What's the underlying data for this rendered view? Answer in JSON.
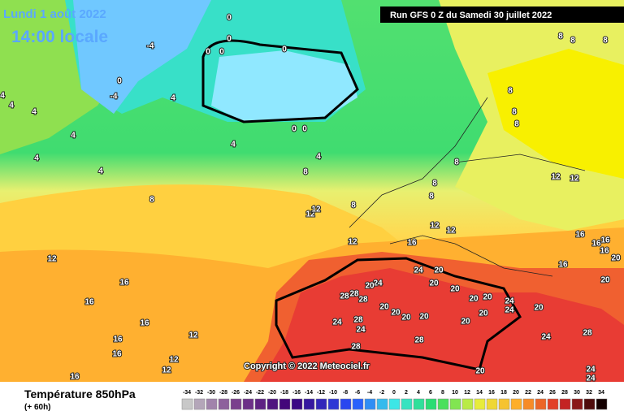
{
  "header": {
    "date": "Lundi 1 août 2022",
    "time": "14:00 locale",
    "run": "Run GFS 0 Z du Samedi 30 juillet 2022"
  },
  "copyright": "Copyright © 2022 Meteociel.fr",
  "footer": {
    "title": "Température 850hPa",
    "lead": "(+ 60h)"
  },
  "scale": {
    "ticks": [
      -34,
      -32,
      -30,
      -28,
      -26,
      -24,
      -22,
      -20,
      -18,
      -16,
      -14,
      -12,
      -10,
      -8,
      -6,
      -4,
      -2,
      0,
      2,
      4,
      6,
      8,
      10,
      12,
      14,
      16,
      18,
      20,
      22,
      24,
      26,
      28,
      30,
      32,
      34
    ]
  },
  "map_labels": [
    "0",
    "0",
    "-4",
    "0",
    "0",
    "0",
    "0",
    "-4",
    "4",
    "4",
    "4",
    "4",
    "4",
    "4",
    "4",
    "4",
    "4",
    "0",
    "0",
    "8",
    "8",
    "8",
    "8",
    "8",
    "8",
    "8",
    "8",
    "8",
    "8",
    "8",
    "8",
    "12",
    "12",
    "12",
    "12",
    "12",
    "12",
    "12",
    "12",
    "16",
    "16",
    "16",
    "16",
    "16",
    "16",
    "16",
    "16",
    "16",
    "16",
    "16",
    "16",
    "12",
    "12",
    "12",
    "24",
    "20",
    "24",
    "20",
    "28",
    "28",
    "28",
    "20",
    "20",
    "20",
    "20",
    "20",
    "20",
    "20",
    "20",
    "20",
    "20",
    "24",
    "24",
    "20",
    "20",
    "20",
    "24",
    "28",
    "24",
    "28",
    "28",
    "24",
    "28",
    "24",
    "24",
    "20"
  ]
}
